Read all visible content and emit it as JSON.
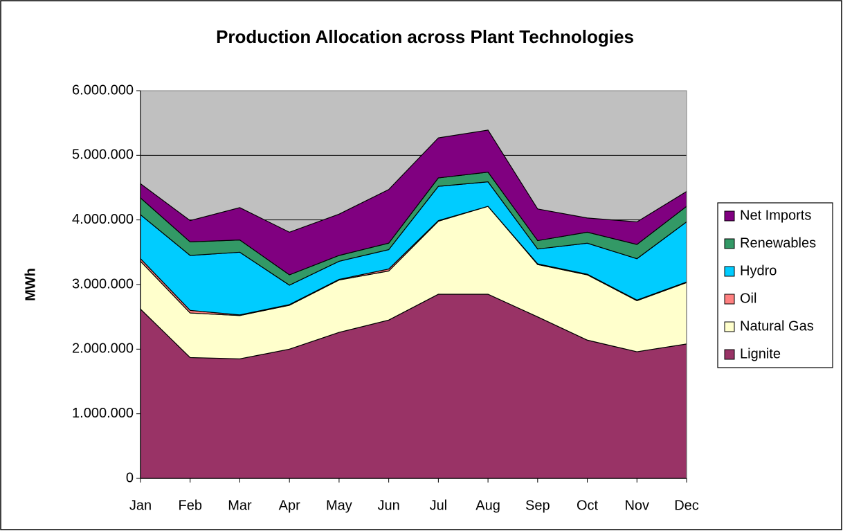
{
  "chart_data": {
    "type": "stacked_area",
    "title": "Production Allocation across Plant Technologies",
    "y_label": "MWh",
    "categories": [
      "Jan",
      "Feb",
      "Mar",
      "Apr",
      "May",
      "Jun",
      "Jul",
      "Aug",
      "Sep",
      "Oct",
      "Nov",
      "Dec"
    ],
    "series": [
      {
        "name": "Lignite",
        "color": "#993366",
        "values": [
          2620000,
          1870000,
          1850000,
          2000000,
          2260000,
          2450000,
          2850000,
          2850000,
          2500000,
          2140000,
          1960000,
          2080000
        ]
      },
      {
        "name": "Natural Gas",
        "color": "#ffffcc",
        "values": [
          740000,
          690000,
          670000,
          680000,
          810000,
          760000,
          1130000,
          1360000,
          810000,
          1010000,
          790000,
          950000
        ]
      },
      {
        "name": "Oil",
        "color": "#ff8080",
        "values": [
          40000,
          40000,
          10000,
          10000,
          10000,
          30000,
          10000,
          0,
          10000,
          10000,
          10000,
          10000
        ]
      },
      {
        "name": "Hydro",
        "color": "#00ccff",
        "values": [
          680000,
          850000,
          970000,
          300000,
          280000,
          300000,
          530000,
          380000,
          230000,
          480000,
          640000,
          930000
        ]
      },
      {
        "name": "Renewables",
        "color": "#339966",
        "values": [
          260000,
          210000,
          190000,
          160000,
          90000,
          100000,
          130000,
          150000,
          130000,
          170000,
          220000,
          240000
        ]
      },
      {
        "name": "Net Imports",
        "color": "#800080",
        "values": [
          220000,
          330000,
          500000,
          660000,
          640000,
          830000,
          620000,
          650000,
          490000,
          220000,
          350000,
          230000
        ]
      }
    ],
    "ylim": [
      0,
      6000000
    ],
    "yticks": [
      0,
      {
        "value": 1000000,
        "label": "1.000.000"
      },
      {
        "value": 2000000,
        "label": "2.000.000"
      },
      {
        "value": 3000000,
        "label": "3.000.000"
      },
      {
        "value": 4000000,
        "label": "4.000.000"
      },
      {
        "value": 5000000,
        "label": "5.000.000"
      },
      {
        "value": 6000000,
        "label": "6.000.000"
      }
    ],
    "grid": true,
    "plot_background": "#c0c0c0",
    "legend_position": "right"
  }
}
